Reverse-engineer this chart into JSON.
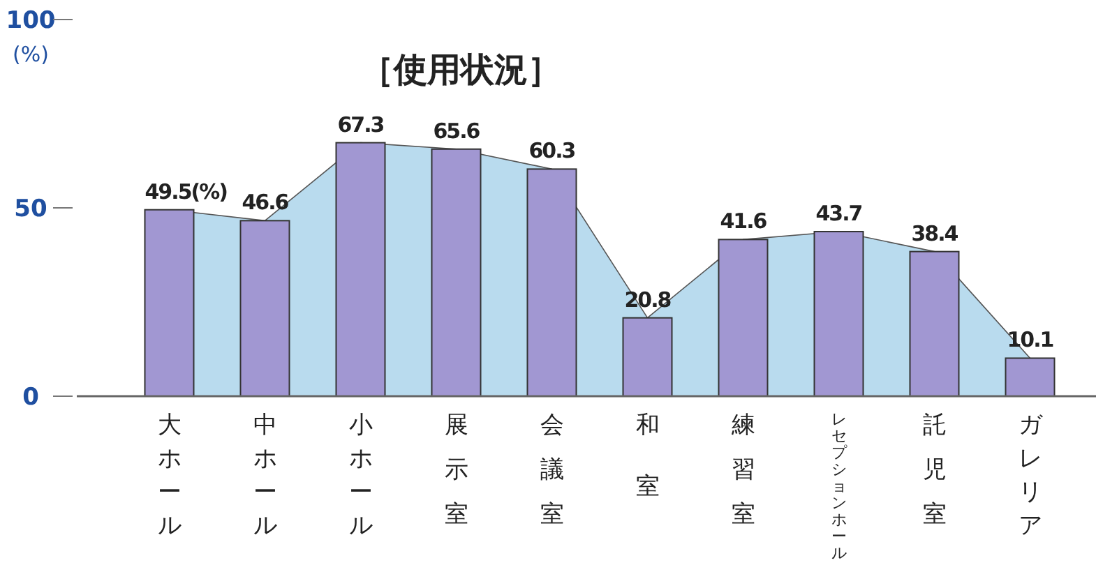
{
  "chart_data": {
    "type": "bar",
    "title": "［使用状況］",
    "ylabel": "(%)",
    "categories": [
      "大ホール",
      "中ホール",
      "小ホール",
      "展示室",
      "会議室",
      "和室",
      "練習室",
      "レセプションホール",
      "託児室",
      "ガレリア"
    ],
    "series": [
      {
        "type": "area",
        "color": "#b9dbee",
        "values": [
          49.5,
          46.6,
          67.3,
          65.6,
          60.3,
          20.8,
          41.6,
          43.7,
          38.4,
          10.1
        ]
      },
      {
        "type": "bar",
        "color": "#a197d2",
        "values": [
          49.5,
          46.6,
          67.3,
          65.6,
          60.3,
          20.8,
          41.6,
          43.7,
          38.4,
          10.1
        ],
        "value_labels": [
          "49.5(%)",
          "46.6",
          "67.3",
          "65.6",
          "60.3",
          "20.8",
          "41.6",
          "43.7",
          "38.4",
          "10.1"
        ]
      }
    ],
    "ylim": [
      0,
      100
    ],
    "yticks": [
      0,
      50,
      100
    ]
  }
}
